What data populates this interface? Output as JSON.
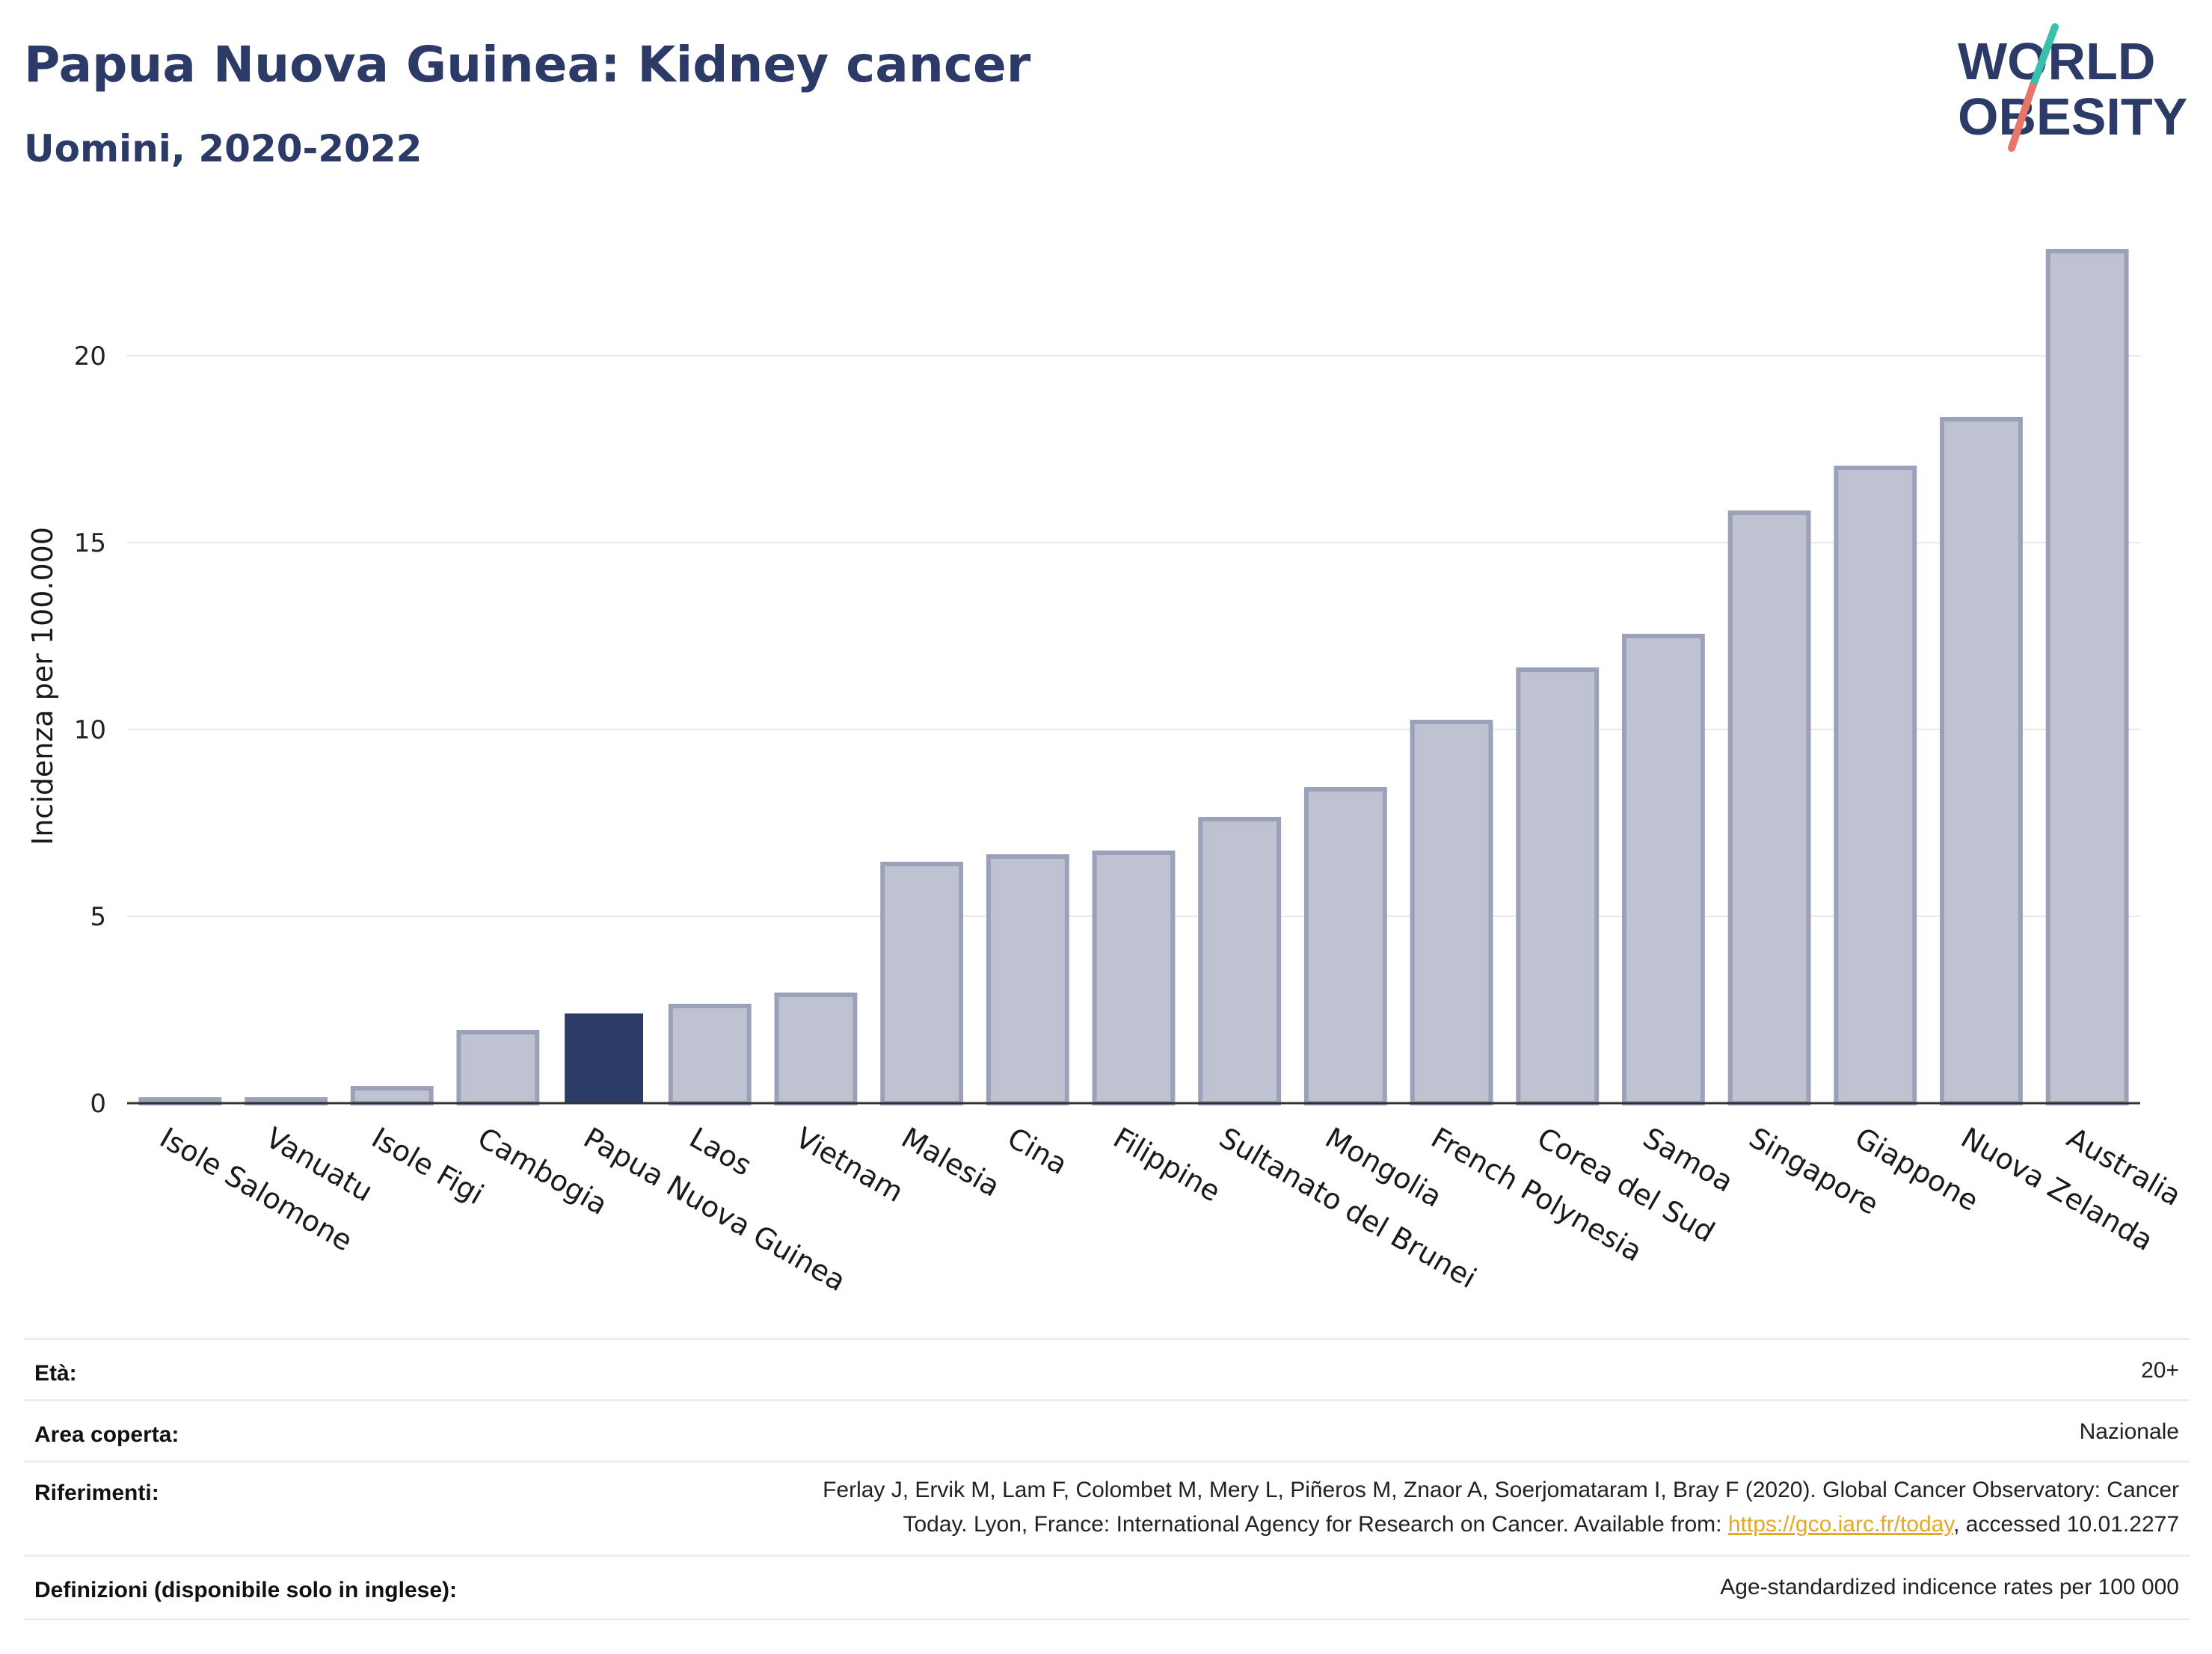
{
  "header": {
    "title": "Papua Nuova Guinea: Kidney cancer",
    "subtitle": "Uomini, 2020-2022"
  },
  "logo": {
    "line1": "WORLD",
    "line2": "OBESITY",
    "brand_navy": "#2b3a67",
    "accent_teal": "#3bbfad",
    "accent_coral": "#e8756a"
  },
  "chart_data": {
    "type": "bar",
    "title": "Papua Nuova Guinea: Kidney cancer",
    "subtitle": "Uomini, 2020-2022",
    "ylabel": "Incidenza per 100.000",
    "xlabel": "",
    "ylim": [
      0,
      23.5
    ],
    "yticks": [
      0,
      5,
      10,
      15,
      20
    ],
    "grid": true,
    "highlight": "Papua Nuova Guinea",
    "colors": {
      "bar": "#bfc3d1",
      "bar_edge": "#9ba1b8",
      "highlight": "#2b3a67"
    },
    "categories": [
      "Isole Salomone",
      "Vanuatu",
      "Isole Figi",
      "Cambogia",
      "Papua Nuova Guinea",
      "Laos",
      "Vietnam",
      "Malesia",
      "Cina",
      "Filippine",
      "Sultanato del Brunei",
      "Mongolia",
      "French Polynesia",
      "Corea del Sud",
      "Samoa",
      "Singapore",
      "Giappone",
      "Nuova Zelanda",
      "Australia"
    ],
    "values": [
      0.1,
      0.1,
      0.4,
      1.9,
      2.4,
      2.6,
      2.9,
      6.4,
      6.6,
      6.7,
      7.6,
      8.4,
      10.2,
      11.6,
      12.5,
      15.8,
      17.0,
      18.3,
      22.8
    ]
  },
  "meta": {
    "age_label": "Età:",
    "age_value": "20+",
    "area_label": "Area coperta:",
    "area_value": "Nazionale",
    "refs_label": "Riferimenti:",
    "refs_line1": "Ferlay J, Ervik M, Lam F, Colombet M, Mery L, Piñeros M, Znaor A, Soerjomataram I, Bray F (2020). Global Cancer Observatory: Cancer",
    "refs_line2_pre": "Today. Lyon, France: International Agency for Research on Cancer. Available from: ",
    "refs_link": "https://gco.iarc.fr/today",
    "refs_line2_post": ", accessed 10.01.2277",
    "defs_label": "Definizioni (disponibile solo in inglese):",
    "defs_value": "Age-standardized indicence rates per 100 000"
  }
}
